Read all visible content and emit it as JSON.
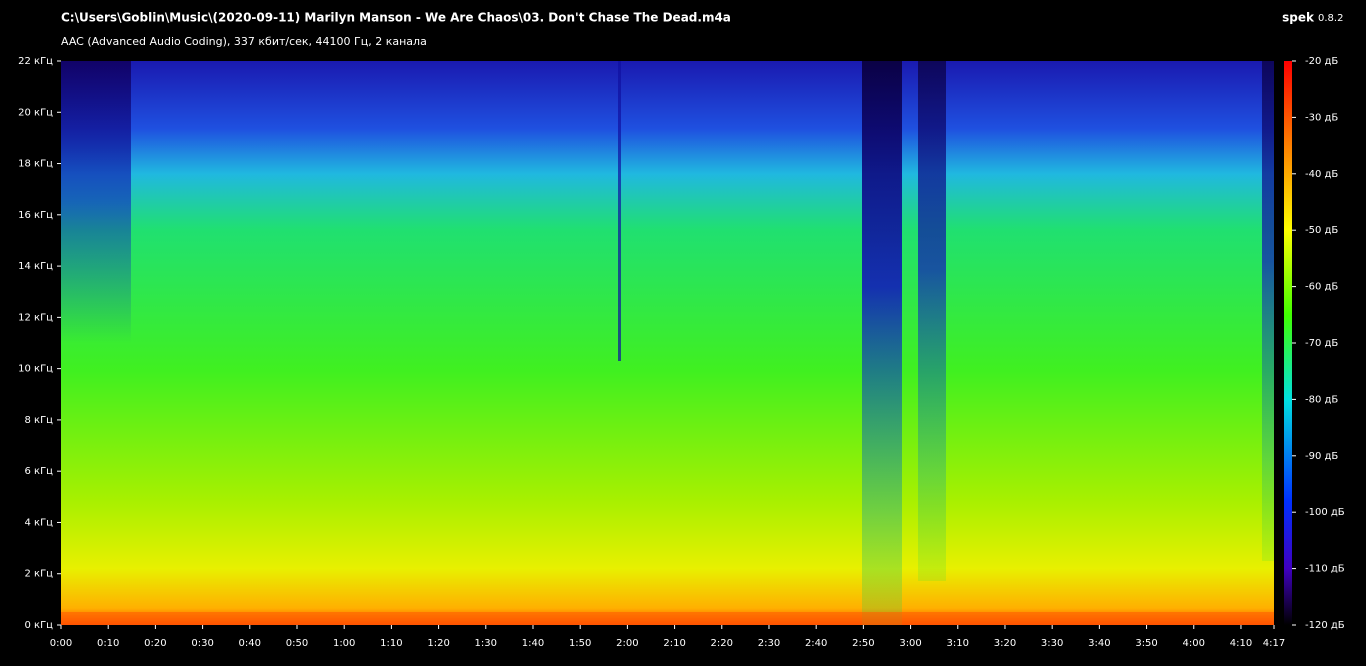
{
  "header": {
    "title": "C:\\Users\\Goblin\\Music\\(2020-09-11) Marilyn Manson - We Are Chaos\\03. Don't Chase The Dead.m4a",
    "subtitle": "AAC (Advanced Audio Coding), 337 кбит/сек, 44100 Гц, 2 канала",
    "app": "spek",
    "version": "0.8.2"
  },
  "frequency_axis": {
    "range": [
      0,
      22
    ],
    "ticks": [
      {
        "value": 0,
        "label": "0 кГц"
      },
      {
        "value": 2,
        "label": "2 кГц"
      },
      {
        "value": 4,
        "label": "4 кГц"
      },
      {
        "value": 6,
        "label": "6 кГц"
      },
      {
        "value": 8,
        "label": "8 кГц"
      },
      {
        "value": 10,
        "label": "10 кГц"
      },
      {
        "value": 12,
        "label": "12 кГц"
      },
      {
        "value": 14,
        "label": "14 кГц"
      },
      {
        "value": 16,
        "label": "16 кГц"
      },
      {
        "value": 18,
        "label": "18 кГц"
      },
      {
        "value": 20,
        "label": "20 кГц"
      },
      {
        "value": 22,
        "label": "22 кГц"
      }
    ]
  },
  "time_axis": {
    "range": [
      0,
      257
    ],
    "ticks": [
      {
        "value": 0,
        "label": "0:00"
      },
      {
        "value": 10,
        "label": "0:10"
      },
      {
        "value": 20,
        "label": "0:20"
      },
      {
        "value": 30,
        "label": "0:30"
      },
      {
        "value": 40,
        "label": "0:40"
      },
      {
        "value": 50,
        "label": "0:50"
      },
      {
        "value": 60,
        "label": "1:00"
      },
      {
        "value": 70,
        "label": "1:10"
      },
      {
        "value": 80,
        "label": "1:20"
      },
      {
        "value": 90,
        "label": "1:30"
      },
      {
        "value": 100,
        "label": "1:40"
      },
      {
        "value": 110,
        "label": "1:50"
      },
      {
        "value": 120,
        "label": "2:00"
      },
      {
        "value": 130,
        "label": "2:10"
      },
      {
        "value": 140,
        "label": "2:20"
      },
      {
        "value": 150,
        "label": "2:30"
      },
      {
        "value": 160,
        "label": "2:40"
      },
      {
        "value": 170,
        "label": "2:50"
      },
      {
        "value": 180,
        "label": "3:00"
      },
      {
        "value": 190,
        "label": "3:10"
      },
      {
        "value": 200,
        "label": "3:20"
      },
      {
        "value": 210,
        "label": "3:30"
      },
      {
        "value": 220,
        "label": "3:40"
      },
      {
        "value": 230,
        "label": "3:50"
      },
      {
        "value": 240,
        "label": "4:00"
      },
      {
        "value": 250,
        "label": "4:10"
      },
      {
        "value": 257,
        "label": "4:17"
      }
    ]
  },
  "level_axis": {
    "range": [
      -120,
      -20
    ],
    "ticks": [
      {
        "value": -20,
        "label": "-20 дБ"
      },
      {
        "value": -30,
        "label": "-30 дБ"
      },
      {
        "value": -40,
        "label": "-40 дБ"
      },
      {
        "value": -50,
        "label": "-50 дБ"
      },
      {
        "value": -60,
        "label": "-60 дБ"
      },
      {
        "value": -70,
        "label": "-70 дБ"
      },
      {
        "value": -80,
        "label": "-80 дБ"
      },
      {
        "value": -90,
        "label": "-90 дБ"
      },
      {
        "value": -100,
        "label": "-100 дБ"
      },
      {
        "value": -110,
        "label": "-110 дБ"
      },
      {
        "value": -120,
        "label": "-120 дБ"
      }
    ]
  }
}
